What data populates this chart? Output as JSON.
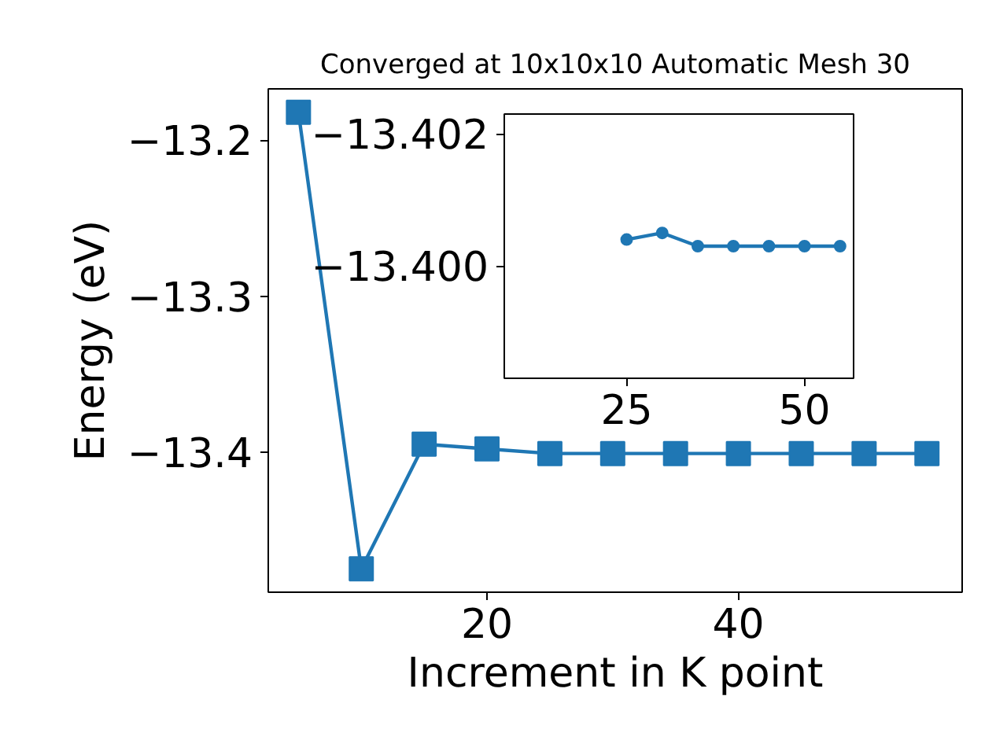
{
  "chart_data": [
    {
      "type": "line",
      "title": "Converged at 10x10x10 Automatic Mesh 30",
      "xlabel": "Increment in K point",
      "ylabel": "Energy (eV)",
      "x": [
        5,
        10,
        15,
        20,
        25,
        30,
        35,
        40,
        45,
        50,
        55
      ],
      "series": [
        {
          "color": "#1f77b4",
          "values": [
            -13.182,
            -13.475,
            -13.395,
            -13.398,
            -13.401,
            -13.401,
            -13.401,
            -13.401,
            -13.401,
            -13.401,
            -13.401
          ]
        }
      ],
      "xlim": [
        2.6,
        57.8
      ],
      "ylim": [
        -13.49,
        -13.167
      ],
      "xticks": [
        20,
        40
      ],
      "yticks": [
        -13.4,
        -13.3,
        -13.2
      ],
      "marker": "square",
      "line_style": "solid",
      "grid": false
    },
    {
      "type": "line",
      "x": [
        25,
        30,
        35,
        40,
        45,
        50,
        55
      ],
      "series": [
        {
          "color": "#1f77b4",
          "values": [
            -13.4004,
            -13.4005,
            -13.4003,
            -13.4003,
            -13.4003,
            -13.4003,
            -13.4003
          ]
        }
      ],
      "xlim": [
        7.8,
        56.9
      ],
      "ylim": [
        -13.3983,
        -13.4023
      ],
      "xticks": [
        25,
        50
      ],
      "yticks": [
        {
          "value": -13.4,
          "label": "−13.400"
        },
        {
          "value": -13.402,
          "label": "−13.402"
        }
      ],
      "marker": "circle",
      "line_style": "solid",
      "grid": false
    }
  ]
}
